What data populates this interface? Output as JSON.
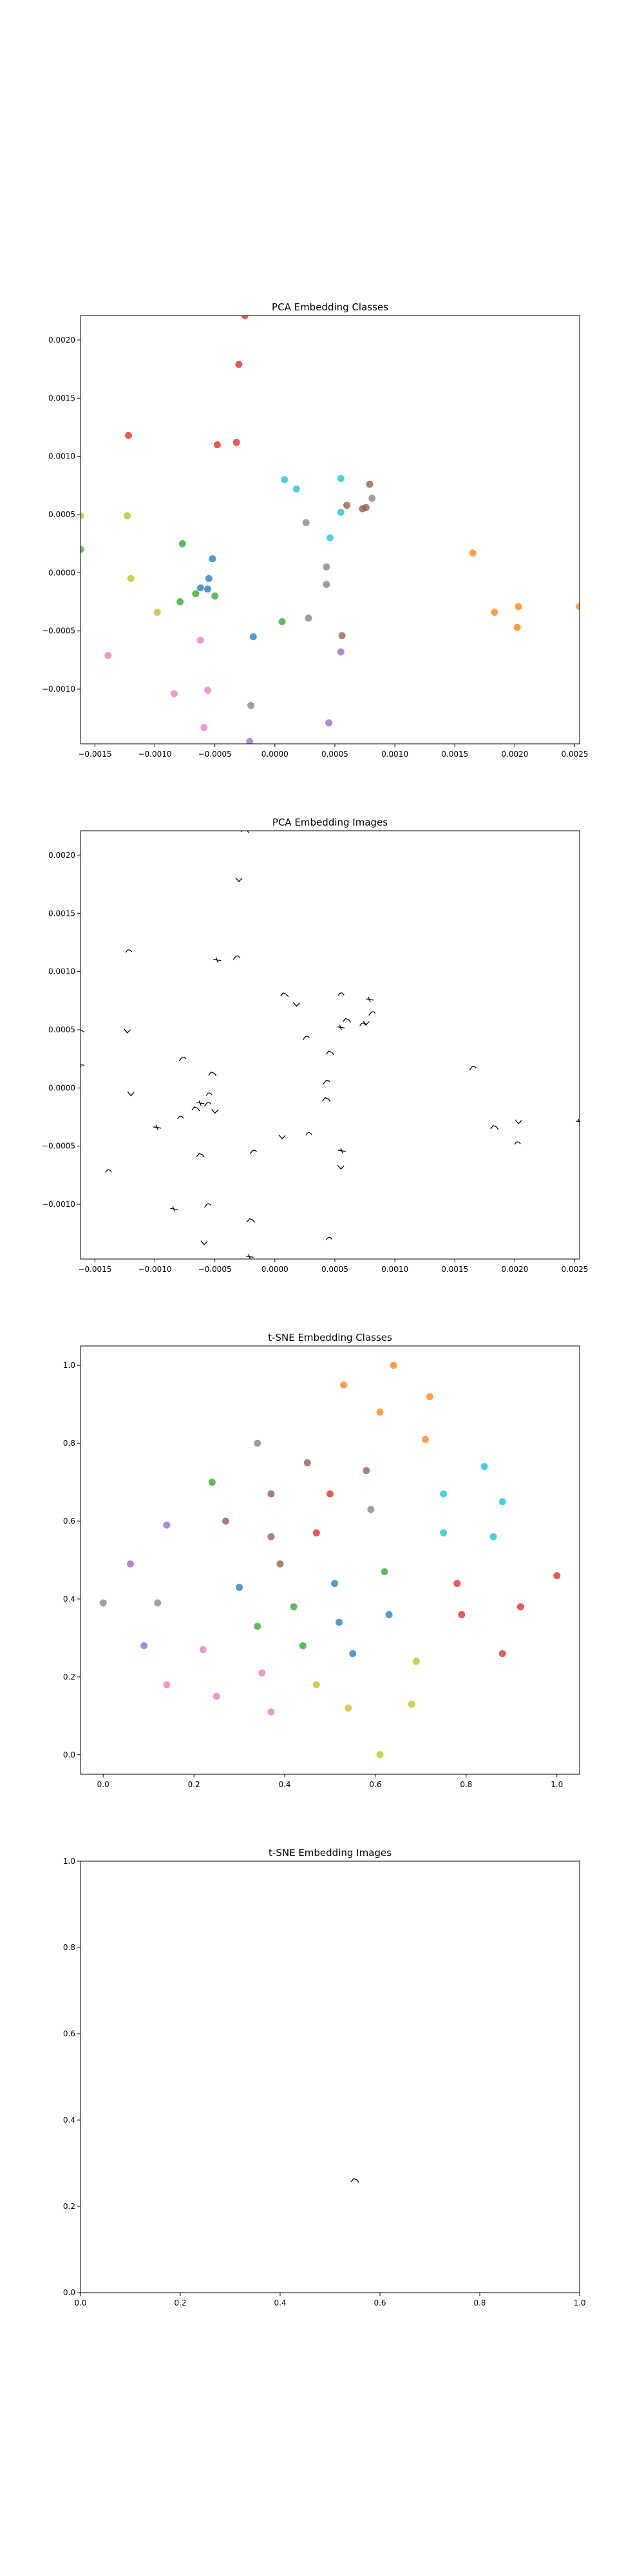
{
  "palette": [
    "#1f77b4",
    "#ff7f0e",
    "#2ca02c",
    "#d62728",
    "#9467bd",
    "#8c564b",
    "#e377c2",
    "#7f7f7f",
    "#bcbd22",
    "#17becf"
  ],
  "chart_data": [
    {
      "type": "scatter",
      "title": "PCA Embedding Classes",
      "xlim": [
        -0.00162,
        0.00254
      ],
      "ylim": [
        -0.00147,
        0.00221
      ],
      "xticks": [
        -0.0015,
        -0.001,
        -0.0005,
        0.0,
        0.0005,
        0.001,
        0.0015,
        0.002,
        0.0025
      ],
      "xtick_labels": [
        "−0.0015",
        "−0.0010",
        "−0.0005",
        "0.0000",
        "0.0005",
        "0.0010",
        "0.0015",
        "0.0020",
        "0.0025"
      ],
      "yticks": [
        -0.001,
        -0.0005,
        0.0,
        0.0005,
        0.001,
        0.0015,
        0.002
      ],
      "ytick_labels": [
        "−0.0010",
        "−0.0005",
        "0.0000",
        "0.0005",
        "0.0010",
        "0.0015",
        "0.0020"
      ],
      "grid": false,
      "points": [
        {
          "x": -0.00025,
          "y": 0.00221,
          "c": 3
        },
        {
          "x": -0.0003,
          "y": 0.00179,
          "c": 3
        },
        {
          "x": -0.00122,
          "y": 0.00118,
          "c": 3
        },
        {
          "x": -0.00048,
          "y": 0.0011,
          "c": 3
        },
        {
          "x": -0.00032,
          "y": 0.00112,
          "c": 3
        },
        {
          "x": 8e-05,
          "y": 0.0008,
          "c": 9
        },
        {
          "x": 0.00018,
          "y": 0.00072,
          "c": 9
        },
        {
          "x": 0.00055,
          "y": 0.00081,
          "c": 9
        },
        {
          "x": 0.00079,
          "y": 0.00076,
          "c": 5
        },
        {
          "x": 0.00081,
          "y": 0.00064,
          "c": 7
        },
        {
          "x": 0.0006,
          "y": 0.00058,
          "c": 5
        },
        {
          "x": 0.00076,
          "y": 0.00056,
          "c": 5
        },
        {
          "x": 0.00073,
          "y": 0.00055,
          "c": 5
        },
        {
          "x": 0.00055,
          "y": 0.00052,
          "c": 9
        },
        {
          "x": 0.00026,
          "y": 0.00043,
          "c": 7
        },
        {
          "x": 0.00046,
          "y": 0.0003,
          "c": 9
        },
        {
          "x": -0.00123,
          "y": 0.00049,
          "c": 8
        },
        {
          "x": -0.00162,
          "y": 0.00049,
          "c": 8
        },
        {
          "x": -0.00162,
          "y": 0.0002,
          "c": 2
        },
        {
          "x": -0.00077,
          "y": 0.00025,
          "c": 2
        },
        {
          "x": -0.00052,
          "y": 0.00012,
          "c": 0
        },
        {
          "x": -0.0012,
          "y": -5e-05,
          "c": 8
        },
        {
          "x": -0.00055,
          "y": -5e-05,
          "c": 0
        },
        {
          "x": -0.00062,
          "y": -0.00013,
          "c": 0
        },
        {
          "x": -0.00056,
          "y": -0.00014,
          "c": 0
        },
        {
          "x": -0.00066,
          "y": -0.00018,
          "c": 2
        },
        {
          "x": -0.0005,
          "y": -0.0002,
          "c": 2
        },
        {
          "x": -0.00079,
          "y": -0.00025,
          "c": 2
        },
        {
          "x": -0.00098,
          "y": -0.00034,
          "c": 8
        },
        {
          "x": 0.00043,
          "y": 5e-05,
          "c": 7
        },
        {
          "x": 0.00043,
          "y": -0.0001,
          "c": 7
        },
        {
          "x": 6e-05,
          "y": -0.00042,
          "c": 2
        },
        {
          "x": 0.00028,
          "y": -0.00039,
          "c": 7
        },
        {
          "x": 0.00056,
          "y": -0.00054,
          "c": 5
        },
        {
          "x": -0.00018,
          "y": -0.00055,
          "c": 0
        },
        {
          "x": -0.00062,
          "y": -0.00058,
          "c": 6
        },
        {
          "x": 0.00055,
          "y": -0.00068,
          "c": 4
        },
        {
          "x": -0.00139,
          "y": -0.00071,
          "c": 6
        },
        {
          "x": -0.00084,
          "y": -0.00104,
          "c": 6
        },
        {
          "x": -0.00056,
          "y": -0.00101,
          "c": 6
        },
        {
          "x": -0.0002,
          "y": -0.00114,
          "c": 7
        },
        {
          "x": -0.00059,
          "y": -0.00133,
          "c": 6
        },
        {
          "x": 0.00045,
          "y": -0.00129,
          "c": 4
        },
        {
          "x": -0.00021,
          "y": -0.00145,
          "c": 4
        },
        {
          "x": 0.00165,
          "y": 0.00017,
          "c": 1
        },
        {
          "x": 0.00183,
          "y": -0.00034,
          "c": 1
        },
        {
          "x": 0.00203,
          "y": -0.00029,
          "c": 1
        },
        {
          "x": 0.00202,
          "y": -0.00047,
          "c": 1
        },
        {
          "x": 0.00254,
          "y": -0.00029,
          "c": 1
        }
      ]
    },
    {
      "type": "scatter",
      "title": "PCA Embedding Images",
      "xlim": [
        -0.00162,
        0.00254
      ],
      "ylim": [
        -0.00147,
        0.00221
      ],
      "xticks": [
        -0.0015,
        -0.001,
        -0.0005,
        0.0,
        0.0005,
        0.001,
        0.0015,
        0.002,
        0.0025
      ],
      "xtick_labels": [
        "−0.0015",
        "−0.0010",
        "−0.0005",
        "0.0000",
        "0.0005",
        "0.0010",
        "0.0015",
        "0.0020",
        "0.0025"
      ],
      "yticks": [
        -0.001,
        -0.0005,
        0.0,
        0.0005,
        0.001,
        0.0015,
        0.002
      ],
      "ytick_labels": [
        "−0.0010",
        "−0.0005",
        "0.0000",
        "0.0005",
        "0.0010",
        "0.0015",
        "0.0020"
      ],
      "grid": false,
      "marker": "small black sketch images",
      "points": [
        {
          "x": -0.00025,
          "y": 0.00221
        },
        {
          "x": -0.0003,
          "y": 0.00179
        },
        {
          "x": -0.00122,
          "y": 0.00118
        },
        {
          "x": -0.00048,
          "y": 0.0011
        },
        {
          "x": -0.00032,
          "y": 0.00112
        },
        {
          "x": 8e-05,
          "y": 0.0008
        },
        {
          "x": 0.00018,
          "y": 0.00072
        },
        {
          "x": 0.00055,
          "y": 0.00081
        },
        {
          "x": 0.00079,
          "y": 0.00076
        },
        {
          "x": 0.00081,
          "y": 0.00064
        },
        {
          "x": 0.0006,
          "y": 0.00058
        },
        {
          "x": 0.00076,
          "y": 0.00056
        },
        {
          "x": 0.00073,
          "y": 0.00055
        },
        {
          "x": 0.00055,
          "y": 0.00052
        },
        {
          "x": 0.00026,
          "y": 0.00043
        },
        {
          "x": 0.00046,
          "y": 0.0003
        },
        {
          "x": -0.00123,
          "y": 0.00049
        },
        {
          "x": -0.00162,
          "y": 0.00049
        },
        {
          "x": -0.00162,
          "y": 0.0002
        },
        {
          "x": -0.00077,
          "y": 0.00025
        },
        {
          "x": -0.00052,
          "y": 0.00012
        },
        {
          "x": -0.0012,
          "y": -5e-05
        },
        {
          "x": -0.00055,
          "y": -5e-05
        },
        {
          "x": -0.00062,
          "y": -0.00013
        },
        {
          "x": -0.00056,
          "y": -0.00014
        },
        {
          "x": -0.00066,
          "y": -0.00018
        },
        {
          "x": -0.0005,
          "y": -0.0002
        },
        {
          "x": -0.00079,
          "y": -0.00025
        },
        {
          "x": -0.00098,
          "y": -0.00034
        },
        {
          "x": 0.00043,
          "y": 5e-05
        },
        {
          "x": 0.00043,
          "y": -0.0001
        },
        {
          "x": 6e-05,
          "y": -0.00042
        },
        {
          "x": 0.00028,
          "y": -0.00039
        },
        {
          "x": 0.00056,
          "y": -0.00054
        },
        {
          "x": -0.00018,
          "y": -0.00055
        },
        {
          "x": -0.00062,
          "y": -0.00058
        },
        {
          "x": 0.00055,
          "y": -0.00068
        },
        {
          "x": -0.00139,
          "y": -0.00071
        },
        {
          "x": -0.00084,
          "y": -0.00104
        },
        {
          "x": -0.00056,
          "y": -0.00101
        },
        {
          "x": -0.0002,
          "y": -0.00114
        },
        {
          "x": -0.00059,
          "y": -0.00133
        },
        {
          "x": 0.00045,
          "y": -0.00129
        },
        {
          "x": -0.00021,
          "y": -0.00145
        },
        {
          "x": 0.00165,
          "y": 0.00017
        },
        {
          "x": 0.00183,
          "y": -0.00034
        },
        {
          "x": 0.00203,
          "y": -0.00029
        },
        {
          "x": 0.00202,
          "y": -0.00047
        },
        {
          "x": 0.00254,
          "y": -0.00029
        }
      ]
    },
    {
      "type": "scatter",
      "title": "t-SNE Embedding Classes",
      "xlim": [
        -0.05,
        1.05
      ],
      "ylim": [
        -0.05,
        1.05
      ],
      "xticks": [
        0.0,
        0.2,
        0.4,
        0.6,
        0.8,
        1.0
      ],
      "xtick_labels": [
        "0.0",
        "0.2",
        "0.4",
        "0.6",
        "0.8",
        "1.0"
      ],
      "yticks": [
        0.0,
        0.2,
        0.4,
        0.6,
        0.8,
        1.0
      ],
      "ytick_labels": [
        "0.0",
        "0.2",
        "0.4",
        "0.6",
        "0.8",
        "1.0"
      ],
      "grid": false,
      "points": [
        {
          "x": 0.64,
          "y": 1.0,
          "c": 1
        },
        {
          "x": 0.53,
          "y": 0.95,
          "c": 1
        },
        {
          "x": 0.72,
          "y": 0.92,
          "c": 1
        },
        {
          "x": 0.61,
          "y": 0.88,
          "c": 1
        },
        {
          "x": 0.71,
          "y": 0.81,
          "c": 1
        },
        {
          "x": 0.34,
          "y": 0.8,
          "c": 7
        },
        {
          "x": 0.45,
          "y": 0.75,
          "c": 5
        },
        {
          "x": 0.58,
          "y": 0.73,
          "c": 5
        },
        {
          "x": 0.84,
          "y": 0.74,
          "c": 9
        },
        {
          "x": 0.24,
          "y": 0.7,
          "c": 2
        },
        {
          "x": 0.37,
          "y": 0.67,
          "c": 5
        },
        {
          "x": 0.5,
          "y": 0.67,
          "c": 3
        },
        {
          "x": 0.75,
          "y": 0.67,
          "c": 9
        },
        {
          "x": 0.88,
          "y": 0.65,
          "c": 9
        },
        {
          "x": 0.59,
          "y": 0.63,
          "c": 7
        },
        {
          "x": 0.27,
          "y": 0.6,
          "c": 5
        },
        {
          "x": 0.14,
          "y": 0.59,
          "c": 4
        },
        {
          "x": 0.47,
          "y": 0.57,
          "c": 3
        },
        {
          "x": 0.37,
          "y": 0.56,
          "c": 5
        },
        {
          "x": 0.75,
          "y": 0.57,
          "c": 9
        },
        {
          "x": 0.86,
          "y": 0.56,
          "c": 9
        },
        {
          "x": 0.06,
          "y": 0.49,
          "c": 4
        },
        {
          "x": 0.39,
          "y": 0.49,
          "c": 5
        },
        {
          "x": 0.62,
          "y": 0.47,
          "c": 2
        },
        {
          "x": 0.3,
          "y": 0.43,
          "c": 0
        },
        {
          "x": 0.51,
          "y": 0.44,
          "c": 0
        },
        {
          "x": 0.78,
          "y": 0.44,
          "c": 3
        },
        {
          "x": 1.0,
          "y": 0.46,
          "c": 3
        },
        {
          "x": 0.0,
          "y": 0.39,
          "c": 7
        },
        {
          "x": 0.12,
          "y": 0.39,
          "c": 7
        },
        {
          "x": 0.42,
          "y": 0.38,
          "c": 2
        },
        {
          "x": 0.92,
          "y": 0.38,
          "c": 3
        },
        {
          "x": 0.63,
          "y": 0.36,
          "c": 0
        },
        {
          "x": 0.79,
          "y": 0.36,
          "c": 3
        },
        {
          "x": 0.52,
          "y": 0.34,
          "c": 0
        },
        {
          "x": 0.34,
          "y": 0.33,
          "c": 2
        },
        {
          "x": 0.09,
          "y": 0.28,
          "c": 4
        },
        {
          "x": 0.44,
          "y": 0.28,
          "c": 2
        },
        {
          "x": 0.22,
          "y": 0.27,
          "c": 6
        },
        {
          "x": 0.88,
          "y": 0.26,
          "c": 3
        },
        {
          "x": 0.55,
          "y": 0.26,
          "c": 0
        },
        {
          "x": 0.69,
          "y": 0.24,
          "c": 8
        },
        {
          "x": 0.35,
          "y": 0.21,
          "c": 6
        },
        {
          "x": 0.14,
          "y": 0.18,
          "c": 6
        },
        {
          "x": 0.47,
          "y": 0.18,
          "c": 8
        },
        {
          "x": 0.25,
          "y": 0.15,
          "c": 6
        },
        {
          "x": 0.68,
          "y": 0.13,
          "c": 8
        },
        {
          "x": 0.54,
          "y": 0.12,
          "c": 8
        },
        {
          "x": 0.37,
          "y": 0.11,
          "c": 6
        },
        {
          "x": 0.61,
          "y": 0.0,
          "c": 8
        }
      ]
    },
    {
      "type": "scatter",
      "title": "t-SNE Embedding Images",
      "xlim": [
        0.0,
        1.0
      ],
      "ylim": [
        0.0,
        1.0
      ],
      "xticks": [
        0.0,
        0.2,
        0.4,
        0.6,
        0.8,
        1.0
      ],
      "xtick_labels": [
        "0.0",
        "0.2",
        "0.4",
        "0.6",
        "0.8",
        "1.0"
      ],
      "yticks": [
        0.0,
        0.2,
        0.4,
        0.6,
        0.8,
        1.0
      ],
      "ytick_labels": [
        "0.0",
        "0.2",
        "0.4",
        "0.6",
        "0.8",
        "1.0"
      ],
      "grid": false,
      "marker": "small black sketch image",
      "points": [
        {
          "x": 0.55,
          "y": 0.26
        }
      ]
    }
  ]
}
